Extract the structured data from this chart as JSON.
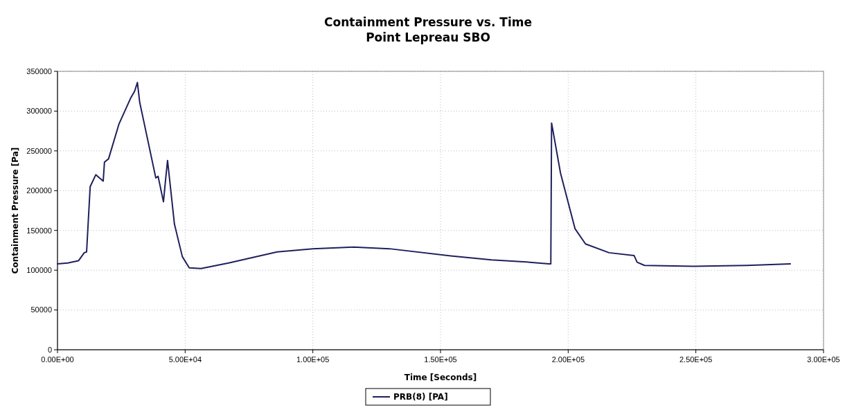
{
  "chart_data": {
    "type": "line",
    "title": "Containment Pressure vs. Time",
    "subtitle": "Point Lepreau SBO",
    "xlabel": "Time [Seconds]",
    "ylabel": "Containment Pressure [Pa]",
    "xlim": [
      0,
      300000
    ],
    "xticks": [
      {
        "value": 0,
        "label": "0.00E+00"
      },
      {
        "value": 50000,
        "label": "5.00E+04"
      },
      {
        "value": 100000,
        "label": "1.00E+05"
      },
      {
        "value": 150000,
        "label": "1.50E+05"
      },
      {
        "value": 200000,
        "label": "2.00E+05"
      },
      {
        "value": 250000,
        "label": "2.50E+05"
      },
      {
        "value": 300000,
        "label": "3.00E+05"
      }
    ],
    "ylim": [
      0,
      350000
    ],
    "yticks": [
      0,
      50000,
      100000,
      150000,
      200000,
      250000,
      300000,
      350000
    ],
    "grid": true,
    "legend": "bottom",
    "marker": "none",
    "line_style": "solid",
    "series": [
      {
        "name": "PRB(8) [PA]",
        "color": "#1f1f5c",
        "x": [
          0,
          4000,
          8200,
          10500,
          11400,
          12800,
          15000,
          17900,
          18400,
          20000,
          24100,
          28600,
          30200,
          31300,
          32200,
          33600,
          38500,
          39400,
          41500,
          42400,
          43100,
          45800,
          48900,
          51600,
          56200,
          67000,
          86000,
          100000,
          116000,
          130000,
          154000,
          170000,
          185000,
          192500,
          193200,
          193500,
          197000,
          202700,
          206800,
          216000,
          225800,
          227000,
          229900,
          249000,
          270000,
          287000
        ],
        "values": [
          108000,
          109000,
          111800,
          122000,
          123000,
          205000,
          220000,
          212000,
          236000,
          240000,
          284000,
          316000,
          325000,
          336000,
          311000,
          290000,
          216000,
          218000,
          186000,
          216000,
          238000,
          158000,
          117000,
          103000,
          102000,
          109000,
          123000,
          127000,
          129000,
          127000,
          118000,
          113000,
          110000,
          108000,
          108000,
          285000,
          222000,
          152000,
          133000,
          122000,
          118500,
          110000,
          106000,
          105000,
          106000,
          108000
        ]
      }
    ]
  }
}
